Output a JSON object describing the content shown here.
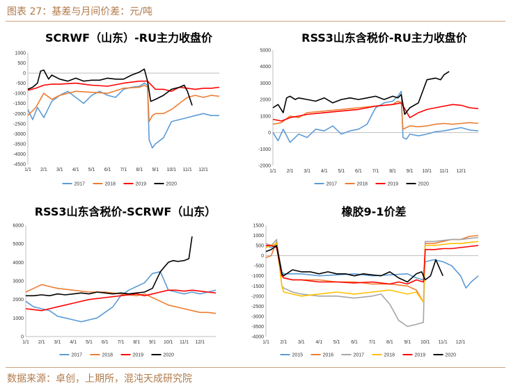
{
  "header": {
    "figure_title": "图表 27：基差与月间价差：元/吨"
  },
  "footer": {
    "source": "数据来源：卓创，上期所，混沌天成研究院"
  },
  "chart_data": [
    {
      "type": "line",
      "title": "SCRWF（山东）-RU主力收盘价",
      "ylim": [
        -4500,
        1000
      ],
      "yticks": [
        1000,
        500,
        0,
        -500,
        -1000,
        -1500,
        -2000,
        -2500,
        -3000,
        -3500,
        -4000,
        -4500
      ],
      "x_tick_labels": [
        "1/1",
        "2/1",
        "3/1",
        "4/1",
        "5/1",
        "6/1",
        "7/1",
        "8/1",
        "9/1",
        "10/1",
        "11/1",
        "12/1"
      ],
      "xlim": [
        0,
        12
      ],
      "series": [
        {
          "name": "2017",
          "color": "#5b9bd5",
          "x": [
            0,
            0.3,
            0.6,
            1,
            1.5,
            2,
            2.5,
            3,
            3.5,
            4,
            4.5,
            5,
            5.5,
            6,
            6.5,
            7,
            7.3,
            7.5,
            7.6,
            7.8,
            8,
            8.5,
            9,
            9.5,
            10,
            10.5,
            11,
            11.5,
            12
          ],
          "y": [
            -1800,
            -2300,
            -1700,
            -2200,
            -1400,
            -1100,
            -900,
            -1200,
            -1500,
            -1100,
            -900,
            -1100,
            -1200,
            -800,
            -700,
            -650,
            -500,
            -600,
            -3300,
            -3700,
            -3500,
            -3200,
            -2400,
            -2300,
            -2200,
            -2100,
            -2000,
            -2100,
            -2100
          ]
        },
        {
          "name": "2018",
          "color": "#ed7d31",
          "x": [
            0,
            0.5,
            1,
            1.5,
            2,
            3,
            4,
            5,
            6,
            7,
            7.3,
            7.5,
            7.6,
            7.8,
            8,
            8.5,
            9,
            9.5,
            10,
            10.5,
            11,
            11.5,
            12
          ],
          "y": [
            -2100,
            -1700,
            -1000,
            -1300,
            -1100,
            -900,
            -950,
            -1000,
            -750,
            -700,
            -600,
            -700,
            -2400,
            -2100,
            -2000,
            -2000,
            -1800,
            -1500,
            -1200,
            -1100,
            -1200,
            -1100,
            -1150
          ]
        },
        {
          "name": "2019",
          "color": "#ff0000",
          "x": [
            0,
            0.5,
            1,
            1.5,
            2,
            3,
            4,
            5,
            6,
            7,
            7.5,
            8,
            8.5,
            9,
            9.5,
            10,
            10.5,
            11,
            11.5,
            12
          ],
          "y": [
            -850,
            -750,
            -600,
            -550,
            -550,
            -500,
            -600,
            -650,
            -500,
            -400,
            -400,
            -800,
            -800,
            -900,
            -700,
            -750,
            -800,
            -750,
            -750,
            -700
          ]
        },
        {
          "name": "2020",
          "color": "#000000",
          "x": [
            0,
            0.3,
            0.6,
            0.8,
            1,
            1.3,
            1.5,
            2,
            2.5,
            3,
            3.5,
            4,
            4.5,
            5,
            5.5,
            6,
            6.5,
            7,
            7.3,
            7.5,
            7.7,
            8,
            8.5,
            9,
            9.5,
            9.8,
            10,
            10.3
          ],
          "y": [
            -800,
            -700,
            -500,
            100,
            150,
            -300,
            -100,
            -300,
            -400,
            -250,
            -400,
            -350,
            -350,
            -250,
            -300,
            -300,
            -100,
            50,
            200,
            -400,
            -1400,
            -1300,
            -1100,
            -800,
            -700,
            -600,
            -900,
            -1600
          ]
        }
      ]
    },
    {
      "type": "line",
      "title": "RSS3山东含税价-RU主力收盘价",
      "ylim": [
        -2000,
        5000
      ],
      "yticks": [
        5000,
        4000,
        3000,
        2000,
        1000,
        0,
        -1000,
        -2000
      ],
      "x_tick_labels": [
        "1/1",
        "2/1",
        "3/1",
        "4/1",
        "5/1",
        "6/1",
        "7/1",
        "8/1",
        "9/1",
        "10/1",
        "11/1",
        "12/1"
      ],
      "xlim": [
        0,
        12
      ],
      "series": [
        {
          "name": "2017",
          "color": "#5b9bd5",
          "x": [
            0,
            0.3,
            0.6,
            1,
            1.5,
            2,
            2.5,
            3,
            3.5,
            4,
            4.5,
            5,
            5.5,
            6,
            6.5,
            7,
            7.3,
            7.5,
            7.6,
            7.8,
            8,
            8.5,
            9,
            9.5,
            10,
            10.5,
            11,
            11.5,
            12
          ],
          "y": [
            0,
            -500,
            200,
            -600,
            -100,
            -300,
            200,
            100,
            400,
            -100,
            100,
            200,
            500,
            1500,
            1800,
            1900,
            2200,
            2500,
            -300,
            -400,
            -100,
            -200,
            -100,
            50,
            100,
            200,
            300,
            150,
            100
          ]
        },
        {
          "name": "2018",
          "color": "#ed7d31",
          "x": [
            0,
            0.5,
            1,
            1.5,
            2,
            3,
            4,
            5,
            6,
            7,
            7.3,
            7.5,
            7.6,
            7.8,
            8,
            8.5,
            9,
            9.5,
            10,
            10.5,
            11,
            11.5,
            12
          ],
          "y": [
            500,
            600,
            1000,
            900,
            1200,
            1300,
            1400,
            1500,
            1600,
            1700,
            1900,
            1800,
            200,
            300,
            400,
            350,
            400,
            500,
            550,
            500,
            550,
            600,
            550
          ]
        },
        {
          "name": "2019",
          "color": "#ff0000",
          "x": [
            0,
            0.5,
            1,
            1.5,
            2,
            3,
            4,
            5,
            6,
            7,
            7.5,
            8,
            8.5,
            9,
            9.5,
            10,
            10.5,
            11,
            11.5,
            12
          ],
          "y": [
            800,
            700,
            900,
            1000,
            1100,
            1200,
            1300,
            1400,
            1600,
            1700,
            1800,
            900,
            1200,
            1400,
            1500,
            1600,
            1700,
            1650,
            1500,
            1450
          ]
        },
        {
          "name": "2020",
          "color": "#000000",
          "x": [
            0,
            0.3,
            0.6,
            0.8,
            1,
            1.3,
            1.5,
            2,
            2.5,
            3,
            3.5,
            4,
            4.5,
            5,
            5.5,
            6,
            6.5,
            7,
            7.3,
            7.5,
            7.7,
            8,
            8.5,
            9,
            9.5,
            9.8,
            10,
            10.3
          ],
          "y": [
            1500,
            1700,
            1200,
            2100,
            2200,
            2000,
            2100,
            2000,
            1900,
            2100,
            1800,
            2000,
            2100,
            2000,
            2100,
            2200,
            2000,
            2200,
            2100,
            2300,
            1100,
            1500,
            1800,
            3200,
            3300,
            3200,
            3500,
            3700
          ]
        }
      ]
    },
    {
      "type": "line",
      "title": "RSS3山东含税价-SCRWF（山东）",
      "ylim": [
        0,
        6000
      ],
      "yticks": [
        6000,
        5000,
        4000,
        3000,
        2000,
        1000,
        0
      ],
      "x_tick_labels": [
        "1/1",
        "2/1",
        "3/1",
        "4/1",
        "5/1",
        "6/1",
        "7/1",
        "8/1",
        "9/1",
        "10/1",
        "11/1",
        "12/1"
      ],
      "xlim": [
        0,
        12
      ],
      "series": [
        {
          "name": "2017",
          "color": "#5b9bd5",
          "x": [
            0,
            0.5,
            1,
            1.5,
            2,
            2.5,
            3,
            3.5,
            4,
            4.5,
            5,
            5.5,
            6,
            6.5,
            7,
            7.5,
            8,
            8.5,
            9,
            9.5,
            10,
            10.5,
            11,
            11.5,
            12
          ],
          "y": [
            1900,
            1600,
            1500,
            1400,
            1100,
            1000,
            900,
            800,
            900,
            1000,
            1300,
            1600,
            2200,
            2500,
            2700,
            2900,
            3400,
            3500,
            2500,
            2400,
            2300,
            2400,
            2300,
            2400,
            2500
          ]
        },
        {
          "name": "2018",
          "color": "#ed7d31",
          "x": [
            0,
            0.5,
            1,
            1.5,
            2,
            3,
            4,
            5,
            6,
            7,
            7.5,
            8,
            8.5,
            9,
            9.5,
            10,
            10.5,
            11,
            11.5,
            12
          ],
          "y": [
            2400,
            2600,
            2800,
            2700,
            2600,
            2500,
            2400,
            2400,
            2300,
            2200,
            2300,
            2100,
            1900,
            1700,
            1600,
            1500,
            1400,
            1300,
            1300,
            1250
          ]
        },
        {
          "name": "2019",
          "color": "#ff0000",
          "x": [
            0,
            0.5,
            1,
            1.5,
            2,
            3,
            4,
            5,
            6,
            7,
            7.5,
            8,
            8.5,
            9,
            9.5,
            10,
            10.5,
            11,
            11.5,
            12
          ],
          "y": [
            1500,
            1450,
            1400,
            1500,
            1600,
            1800,
            2000,
            2100,
            2200,
            2300,
            2200,
            2300,
            2400,
            2500,
            2500,
            2450,
            2500,
            2450,
            2400,
            2350
          ]
        },
        {
          "name": "2020",
          "color": "#000000",
          "x": [
            0,
            0.5,
            1,
            1.5,
            2,
            2.5,
            3,
            3.5,
            4,
            4.5,
            5,
            5.5,
            6,
            6.5,
            7,
            7.5,
            8,
            8.5,
            8.8,
            9,
            9.3,
            9.6,
            10,
            10.3,
            10.5
          ],
          "y": [
            2200,
            2200,
            2250,
            2200,
            2300,
            2250,
            2300,
            2350,
            2300,
            2400,
            2350,
            2300,
            2350,
            2300,
            2350,
            2400,
            2600,
            3500,
            3800,
            4000,
            4100,
            4050,
            4100,
            4200,
            5400
          ]
        }
      ]
    },
    {
      "type": "line",
      "title": "橡胶9-1价差",
      "ylim": [
        -4000,
        1500
      ],
      "yticks": [
        1500,
        1000,
        500,
        0,
        -500,
        -1000,
        -1500,
        -2000,
        -2500,
        -3000,
        -3500,
        -4000
      ],
      "x_tick_labels": [
        "1/1",
        "2/1",
        "3/1",
        "4/1",
        "5/1",
        "6/1",
        "7/1",
        "8/1",
        "9/1",
        "10/1",
        "11/1",
        "12/1"
      ],
      "xlim": [
        0,
        12
      ],
      "series": [
        {
          "name": "2015",
          "color": "#5b9bd5",
          "x": [
            0,
            0.3,
            0.6,
            0.9,
            1,
            1.5,
            2,
            3,
            4,
            5,
            6,
            7,
            8,
            8.5,
            8.9,
            9,
            9.5,
            10,
            10.5,
            11,
            11.3,
            11.6,
            12
          ],
          "y": [
            500,
            400,
            600,
            -800,
            -900,
            -900,
            -900,
            -1000,
            -950,
            -900,
            -1000,
            -950,
            -900,
            -1100,
            -1200,
            -300,
            -200,
            -300,
            -500,
            -1000,
            -1600,
            -1300,
            -1000
          ]
        },
        {
          "name": "2016",
          "color": "#ed7d31",
          "x": [
            0,
            0.3,
            0.6,
            0.9,
            1,
            1.5,
            2,
            3,
            4,
            5,
            6,
            7,
            8,
            8.5,
            8.9,
            9,
            9.5,
            10,
            10.5,
            11,
            11.5,
            12
          ],
          "y": [
            -100,
            0,
            700,
            -1000,
            -1100,
            -1200,
            -1200,
            -1200,
            -1300,
            -1300,
            -1400,
            -1400,
            -1500,
            -1700,
            -2300,
            600,
            600,
            700,
            800,
            800,
            950,
            1000
          ]
        },
        {
          "name": "2017",
          "color": "#a5a5a5",
          "x": [
            0,
            0.3,
            0.6,
            0.9,
            1,
            1.5,
            2,
            3,
            4,
            5,
            6,
            6.5,
            7,
            7.5,
            8,
            8.5,
            8.9,
            9,
            9.5,
            10,
            10.5,
            11,
            11.5,
            12
          ],
          "y": [
            600,
            500,
            800,
            -1500,
            -1600,
            -1800,
            -1900,
            -2000,
            -2000,
            -2100,
            -2000,
            -1900,
            -2400,
            -3200,
            -3500,
            -3400,
            -3300,
            700,
            700,
            750,
            800,
            800,
            850,
            900
          ]
        },
        {
          "name": "2018",
          "color": "#ffc000",
          "x": [
            0,
            0.3,
            0.6,
            0.9,
            1,
            1.5,
            2,
            3,
            4,
            5,
            6,
            7,
            7.5,
            8,
            8.5,
            8.9,
            9,
            9.5,
            10,
            10.5,
            11,
            11.5,
            12
          ],
          "y": [
            400,
            500,
            600,
            -1500,
            -1800,
            -1900,
            -2000,
            -1900,
            -1800,
            -1900,
            -1800,
            -1700,
            -1800,
            -1900,
            -1800,
            -2300,
            500,
            500,
            550,
            600,
            600,
            650,
            700
          ]
        },
        {
          "name": "2019",
          "color": "#ff0000",
          "x": [
            0,
            0.3,
            0.6,
            0.9,
            1,
            1.5,
            2,
            3,
            4,
            5,
            6,
            7,
            7.5,
            8,
            8.5,
            8.9,
            9,
            9.5,
            10,
            10.5,
            11,
            11.5,
            12
          ],
          "y": [
            500,
            500,
            400,
            -1000,
            -1100,
            -1200,
            -1200,
            -1300,
            -1300,
            -1350,
            -1300,
            -1400,
            -1300,
            -1400,
            -1200,
            -1300,
            300,
            300,
            350,
            350,
            400,
            450,
            500
          ]
        },
        {
          "name": "2020",
          "color": "#000000",
          "x": [
            0,
            0.3,
            0.6,
            0.9,
            1,
            1.5,
            2,
            2.5,
            3,
            3.5,
            4,
            4.5,
            5,
            5.5,
            6,
            6.5,
            7,
            7.5,
            8,
            8.5,
            8.8,
            9,
            9.3,
            9.6,
            10
          ],
          "y": [
            200,
            300,
            500,
            -900,
            -1000,
            -700,
            -800,
            -800,
            -900,
            -800,
            -900,
            -900,
            -1000,
            -900,
            -950,
            -1000,
            -800,
            -1100,
            -1300,
            -900,
            -800,
            -1200,
            -1000,
            -200,
            -1000
          ]
        }
      ]
    }
  ]
}
